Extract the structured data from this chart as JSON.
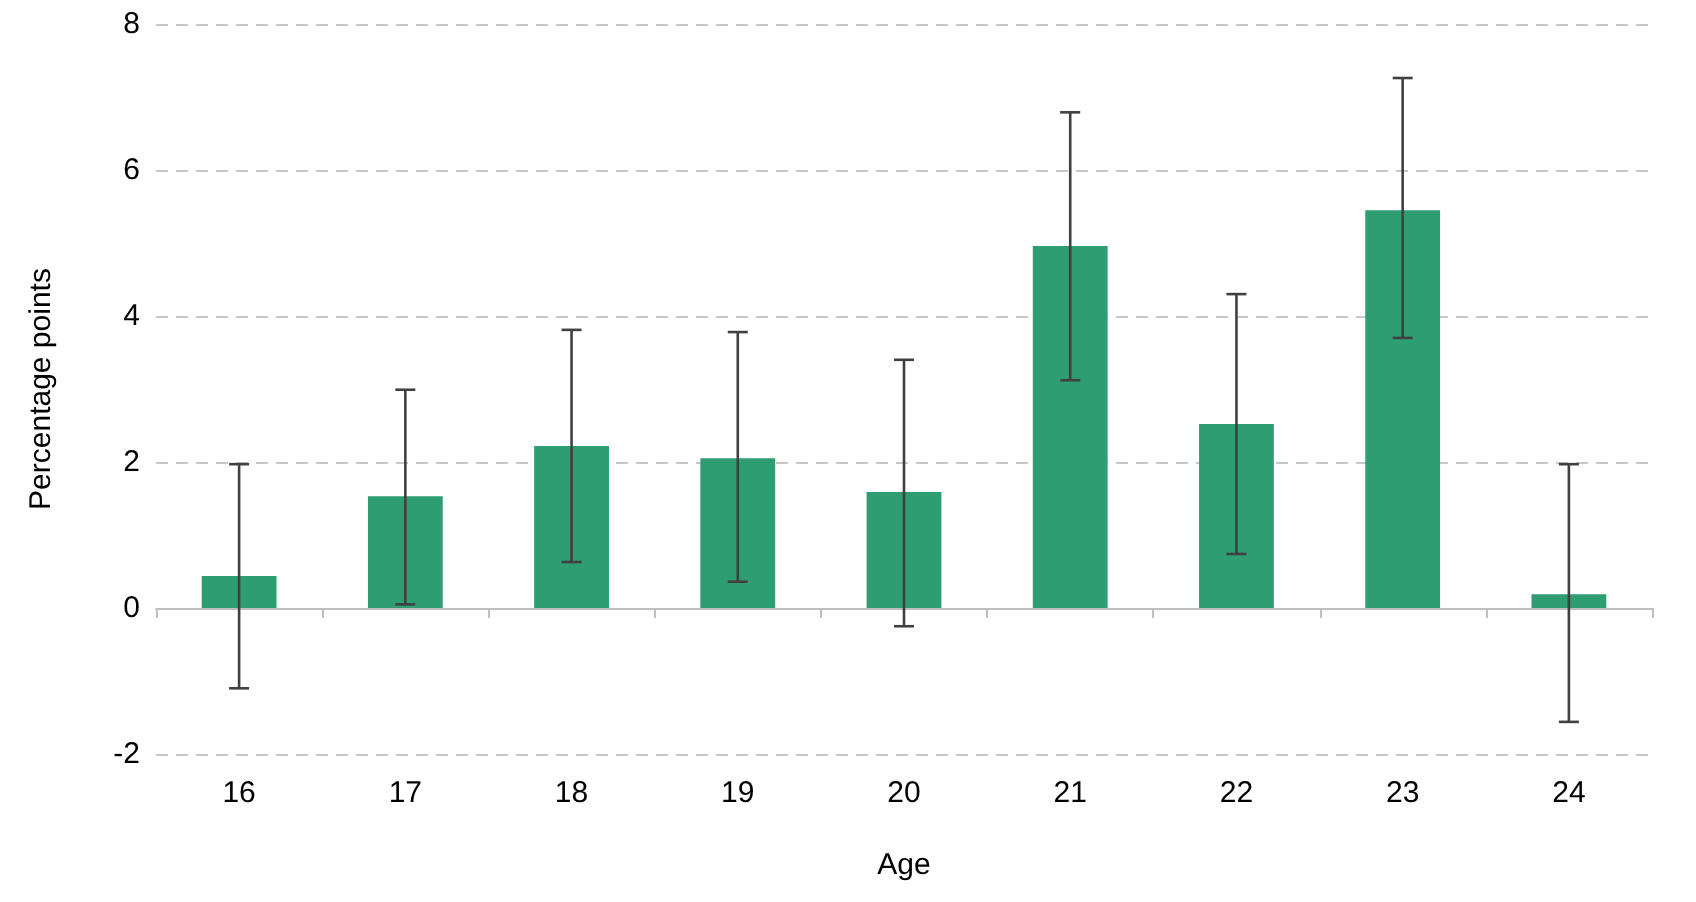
{
  "chart_data": {
    "type": "bar",
    "xlabel": "Age",
    "ylabel": "Percentage points",
    "categories": [
      "16",
      "17",
      "18",
      "19",
      "20",
      "21",
      "22",
      "23",
      "24"
    ],
    "values": [
      0.44,
      1.53,
      2.22,
      2.05,
      1.59,
      4.96,
      2.52,
      5.45,
      0.19
    ],
    "errors": [
      [
        -1.1,
        1.97
      ],
      [
        0.05,
        2.99
      ],
      [
        0.63,
        3.81
      ],
      [
        0.36,
        3.78
      ],
      [
        -0.25,
        3.4
      ],
      [
        3.12,
        6.79
      ],
      [
        0.74,
        4.3
      ],
      [
        3.7,
        7.26
      ],
      [
        -1.56,
        1.97
      ]
    ],
    "color": "#2e9e72",
    "ylim": [
      -2,
      8
    ],
    "yticks": [
      -2,
      0,
      2,
      4,
      6,
      8
    ],
    "grid": "y"
  }
}
